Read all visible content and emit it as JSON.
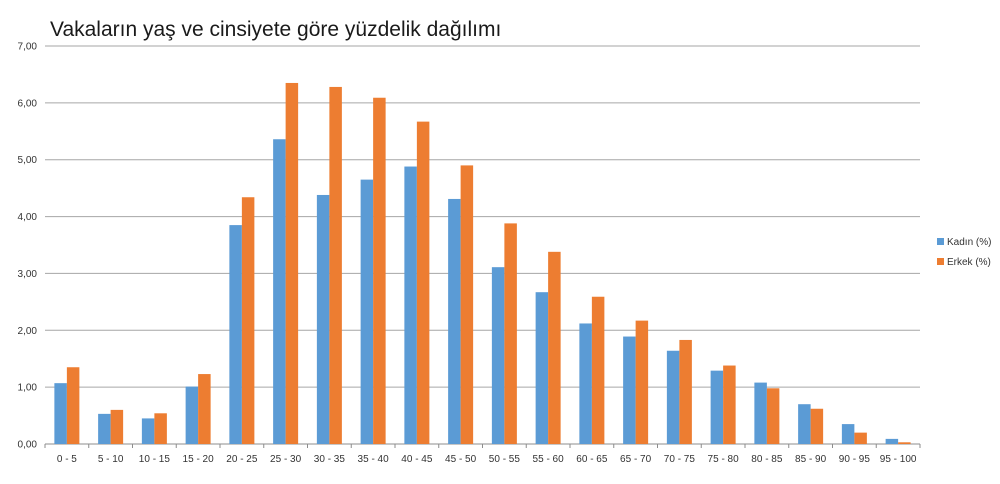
{
  "chart_data": {
    "type": "bar",
    "title": "Vakaların yaş ve cinsiyete göre yüzdelik dağılımı",
    "xlabel": "",
    "ylabel": "",
    "ylim": [
      0,
      7
    ],
    "yticks": [
      "0,00",
      "1,00",
      "2,00",
      "3,00",
      "4,00",
      "5,00",
      "6,00",
      "7,00"
    ],
    "grid": true,
    "legend_position": "right",
    "categories": [
      "0 - 5",
      "5 - 10",
      "10 - 15",
      "15 - 20",
      "20 - 25",
      "25 - 30",
      "30 - 35",
      "35 - 40",
      "40 - 45",
      "45 - 50",
      "50 - 55",
      "55 - 60",
      "60 - 65",
      "65 - 70",
      "70 - 75",
      "75 - 80",
      "80 - 85",
      "85 - 90",
      "90 - 95",
      "95 - 100"
    ],
    "series": [
      {
        "name": "Kadın (%)",
        "color": "#5b9bd5",
        "values": [
          1.07,
          0.53,
          0.45,
          1.01,
          3.85,
          5.36,
          4.38,
          4.65,
          4.88,
          4.31,
          3.11,
          2.67,
          2.12,
          1.89,
          1.64,
          1.29,
          1.08,
          0.7,
          0.35,
          0.09
        ]
      },
      {
        "name": "Erkek (%)",
        "color": "#ed7d31",
        "values": [
          1.35,
          0.6,
          0.54,
          1.23,
          4.34,
          6.35,
          6.28,
          6.09,
          5.67,
          4.9,
          3.88,
          3.38,
          2.59,
          2.17,
          1.83,
          1.38,
          0.98,
          0.62,
          0.2,
          0.03
        ]
      }
    ]
  }
}
